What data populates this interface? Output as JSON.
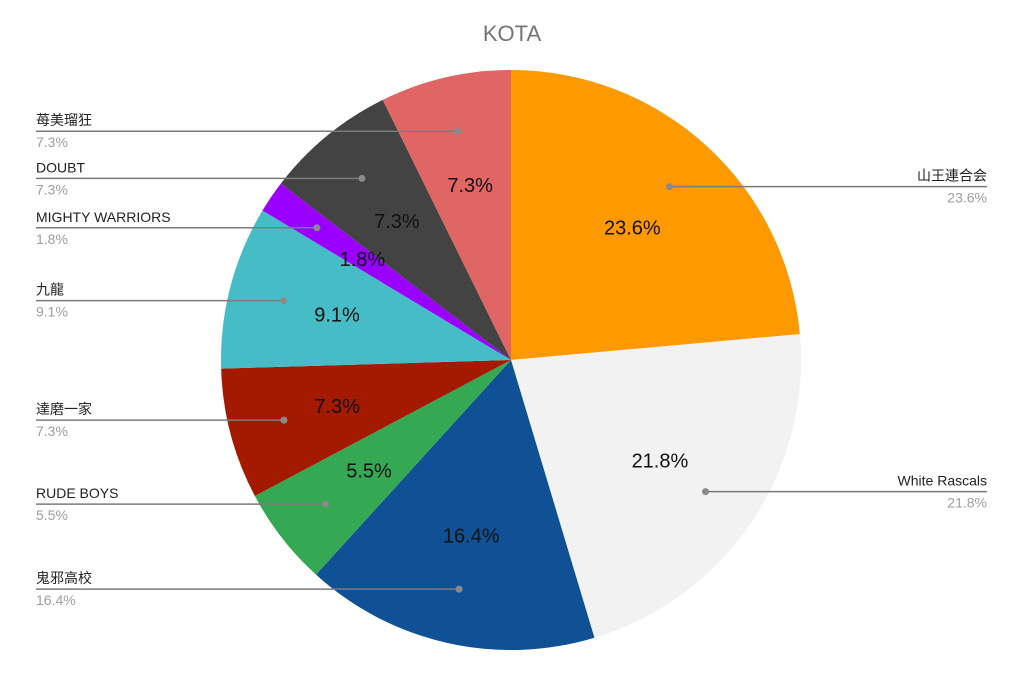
{
  "chart_data": {
    "type": "pie",
    "title": "KOTA",
    "slices": [
      {
        "name": "山王連合会",
        "value": 23.6,
        "label": "23.6%",
        "color": "#FF9900"
      },
      {
        "name": "White Rascals",
        "value": 21.8,
        "label": "21.8%",
        "color": "#F2F2F2"
      },
      {
        "name": "鬼邪高校",
        "value": 16.4,
        "label": "16.4%",
        "color": "#0F5194"
      },
      {
        "name": "RUDE BOYS",
        "value": 5.5,
        "label": "5.5%",
        "color": "#34A853"
      },
      {
        "name": "達磨一家",
        "value": 7.3,
        "label": "7.3%",
        "color": "#A31A00"
      },
      {
        "name": "九龍",
        "value": 9.1,
        "label": "9.1%",
        "color": "#46BDC6"
      },
      {
        "name": "MIGHTY WARRIORS",
        "value": 1.8,
        "label": "1.8%",
        "color": "#9900FF"
      },
      {
        "name": "DOUBT",
        "value": 7.3,
        "label": "7.3%",
        "color": "#434343"
      },
      {
        "name": "苺美瑠狂",
        "value": 7.3,
        "label": "7.3%",
        "color": "#E06666"
      }
    ],
    "legend": "callouts",
    "start_angle_deg": 0,
    "direction": "clockwise"
  }
}
